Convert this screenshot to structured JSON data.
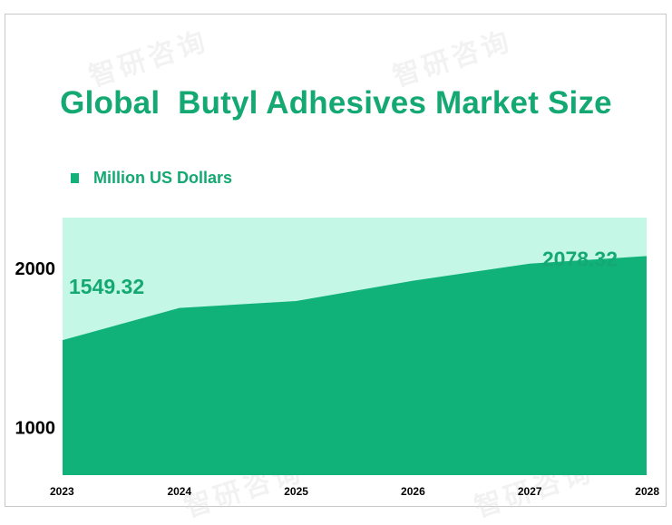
{
  "chart_data": {
    "type": "area",
    "title": "Global  Butyl Adhesives Market Size",
    "series": [
      {
        "name": "Million US Dollars",
        "color": "#10b27a",
        "x": [
          "2023",
          "2024",
          "2025",
          "2026",
          "2027",
          "2028"
        ],
        "values": [
          1549.32,
          1752,
          1795,
          1923,
          2030,
          2078.32
        ]
      }
    ],
    "x_tick_labels": [
      "2023",
      "2024",
      "2025",
      "2026",
      "2027",
      "2028"
    ],
    "y_tick_labels": [
      "1000",
      "2000"
    ],
    "y_ticks": [
      1000,
      2000
    ],
    "ylim": [
      700,
      2320
    ],
    "data_labels": [
      {
        "index": 0,
        "text": "1549.32"
      },
      {
        "index": 5,
        "text": "2078.32"
      }
    ],
    "legend_position": "top-left",
    "grid": false,
    "colors": {
      "area_fill": "#10b27a",
      "plot_background": "#c5f7e6",
      "title_text": "#14a872",
      "axis_text": "#000000"
    }
  },
  "watermark_text": "智研咨询"
}
